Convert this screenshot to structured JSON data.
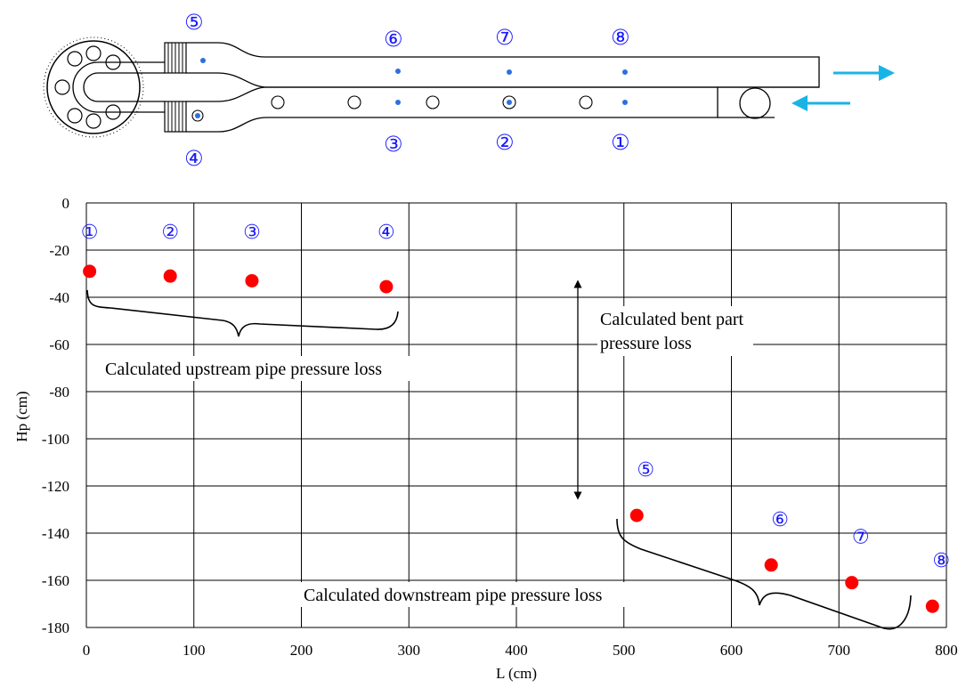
{
  "schematic": {
    "top_labels": [
      "⑤",
      "⑥",
      "⑦",
      "⑧"
    ],
    "bottom_labels": [
      "④",
      "③",
      "②",
      "①"
    ],
    "arrow_color": "#19b4e6",
    "tap_color": "#2e6fe0"
  },
  "chart_data": {
    "type": "scatter",
    "xlabel": "L (cm)",
    "ylabel": "Hp (cm)",
    "xlim": [
      0,
      800
    ],
    "ylim": [
      -180,
      0
    ],
    "xticks": [
      0,
      100,
      200,
      300,
      400,
      500,
      600,
      700,
      800
    ],
    "yticks": [
      0,
      -20,
      -40,
      -60,
      -80,
      -100,
      -120,
      -140,
      -160,
      -180
    ],
    "grid": true,
    "marker_color": "#ff0000",
    "points": [
      {
        "label": "①",
        "x": 3,
        "y": -29
      },
      {
        "label": "②",
        "x": 78,
        "y": -31
      },
      {
        "label": "③",
        "x": 154,
        "y": -33
      },
      {
        "label": "④",
        "x": 279,
        "y": -35.5
      },
      {
        "label": "⑤",
        "x": 512,
        "y": -132.5
      },
      {
        "label": "⑥",
        "x": 637,
        "y": -153.5
      },
      {
        "label": "⑦",
        "x": 712,
        "y": -161
      },
      {
        "label": "⑧",
        "x": 787,
        "y": -171
      }
    ],
    "annotations": {
      "upstream": "Calculated upstream pipe pressure loss",
      "bent_line1": "Calculated bent part",
      "bent_line2": "pressure loss",
      "downstream": "Calculated downstream pipe pressure loss"
    }
  }
}
